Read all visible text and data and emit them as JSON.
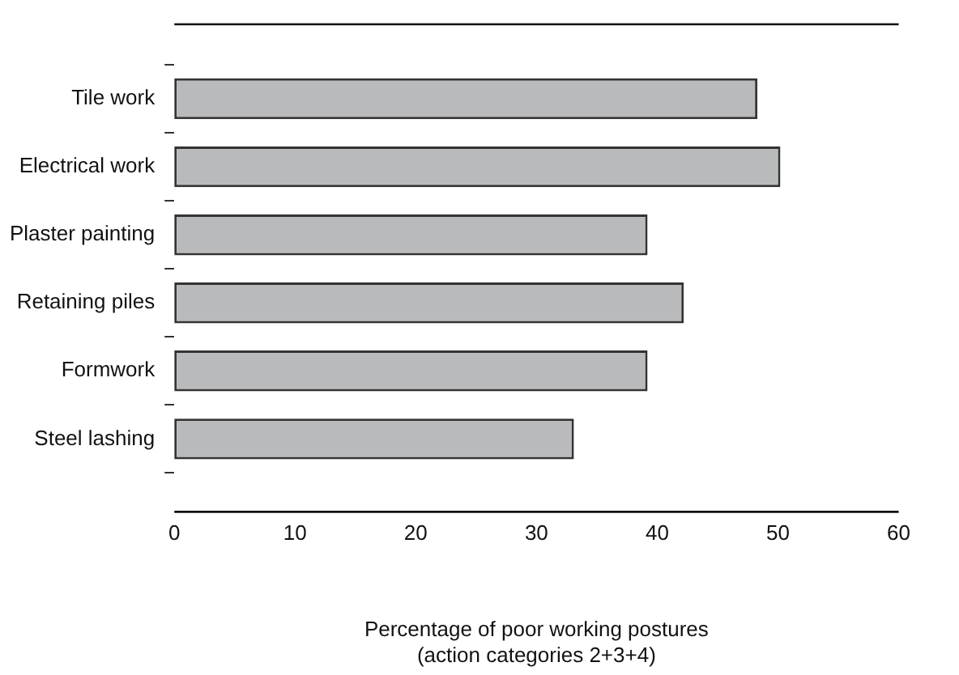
{
  "chart_data": {
    "type": "bar",
    "orientation": "horizontal",
    "xlabel": "Percentage of poor working postures\n(action categories 2+3+4)",
    "categories": [
      "Tile work",
      "Electrical work",
      "Plaster painting",
      "Retaining piles",
      "Formwork",
      "Steel lashing"
    ],
    "values": [
      48.3,
      50.2,
      39.2,
      42.2,
      39.2,
      33.1
    ],
    "color": "#b9babc",
    "xlim": [
      0,
      60
    ],
    "xticks": [
      0,
      10,
      20,
      30,
      40,
      50,
      60
    ]
  }
}
